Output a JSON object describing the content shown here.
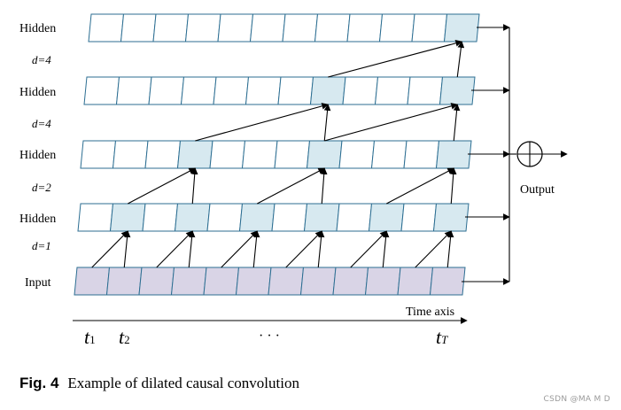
{
  "figure": {
    "row_labels": [
      "Hidden",
      "Hidden",
      "Hidden",
      "Hidden",
      "Input"
    ],
    "dilation_labels": [
      "d=4",
      "d=4",
      "d=2",
      "d=1"
    ],
    "output_label": "Output",
    "output_symbol": "⊕",
    "time_axis_label": "Time axis",
    "time_labels": {
      "t1": "t",
      "t1_sub": "1",
      "t2": "t",
      "t2_sub": "2",
      "ellipsis": "· · ·",
      "tT": "t",
      "tT_sub": "T"
    },
    "cells_per_row": 12,
    "rows": [
      {
        "name": "hidden-4",
        "active_cells": [
          11
        ]
      },
      {
        "name": "hidden-3",
        "active_cells": [
          7,
          11
        ]
      },
      {
        "name": "hidden-2",
        "active_cells": [
          3,
          7,
          11
        ]
      },
      {
        "name": "hidden-1",
        "active_cells": [
          1,
          3,
          5,
          7,
          9,
          11
        ]
      },
      {
        "name": "input",
        "active_cells": []
      }
    ]
  },
  "caption": {
    "label": "Fig. 4",
    "text": "Example of dilated causal convolution"
  },
  "watermark": "CSDN @MA M D",
  "colors": {
    "cell_border": "#2c6e92",
    "active_fill": "#d7e9f0",
    "input_fill": "#d9d4e6"
  }
}
